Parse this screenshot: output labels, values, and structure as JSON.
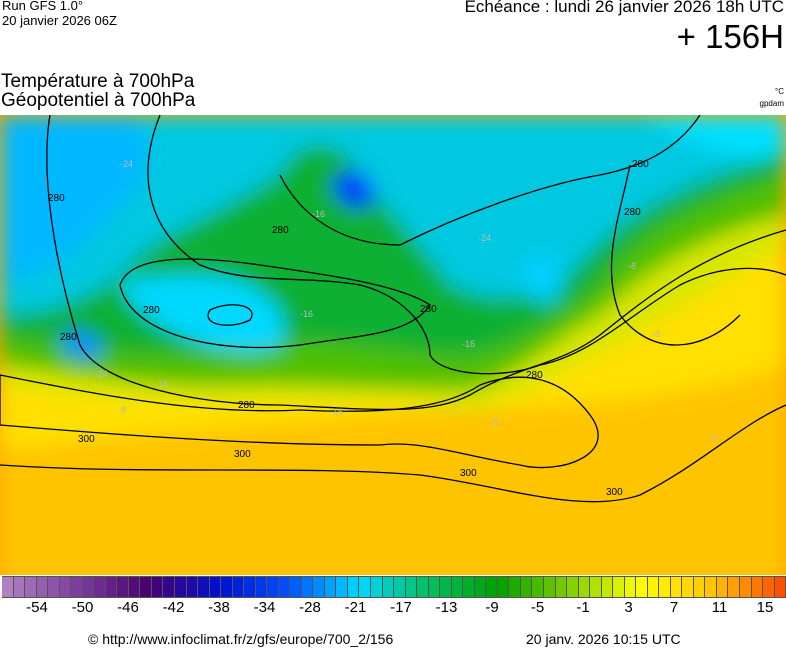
{
  "header": {
    "run": "Run GFS 1.0°",
    "run_date": "20 janvier 2026 06Z",
    "echeance": "Echéance : lundi 26 janvier 2026 18h UTC",
    "lead": "+ 156H",
    "title1": "Température à 700hPa",
    "title2": "Géopotentiel à 700hPa",
    "unit_temp": "°C",
    "unit_geo": "gpdam"
  },
  "map": {
    "fields": [
      "temperature 700hPa (shaded)",
      "geopotential 700hPa (contours)"
    ],
    "geo_labels": [
      "280",
      "280",
      "280",
      "280",
      "280",
      "280",
      "280",
      "280",
      "280",
      "300",
      "300",
      "300",
      "300"
    ],
    "temp_labels": [
      "-24",
      "-24",
      "-24",
      "-16",
      "-16",
      "-16",
      "-16",
      "-16",
      "-8",
      "-8",
      "-8",
      "-8",
      "0"
    ]
  },
  "colorbar": {
    "labels": [
      "-54",
      "-50",
      "-46",
      "-42",
      "-38",
      "-34",
      "-28",
      "-21",
      "-17",
      "-13",
      "-9",
      "-5",
      "-1",
      "3",
      "7",
      "11",
      "15"
    ],
    "anchors": [
      "#b07fc0",
      "#7a3f9e",
      "#4a0070",
      "#0010d0",
      "#0050ff",
      "#00d8ff",
      "#00c060",
      "#00a000",
      "#80d000",
      "#ffff00",
      "#ffc800",
      "#ff5000"
    ]
  },
  "footer": {
    "url": "© http://www.infoclimat.fr/z/gfs/europe/700_2/156",
    "generated": "20 janv. 2026 10:15 UTC"
  }
}
